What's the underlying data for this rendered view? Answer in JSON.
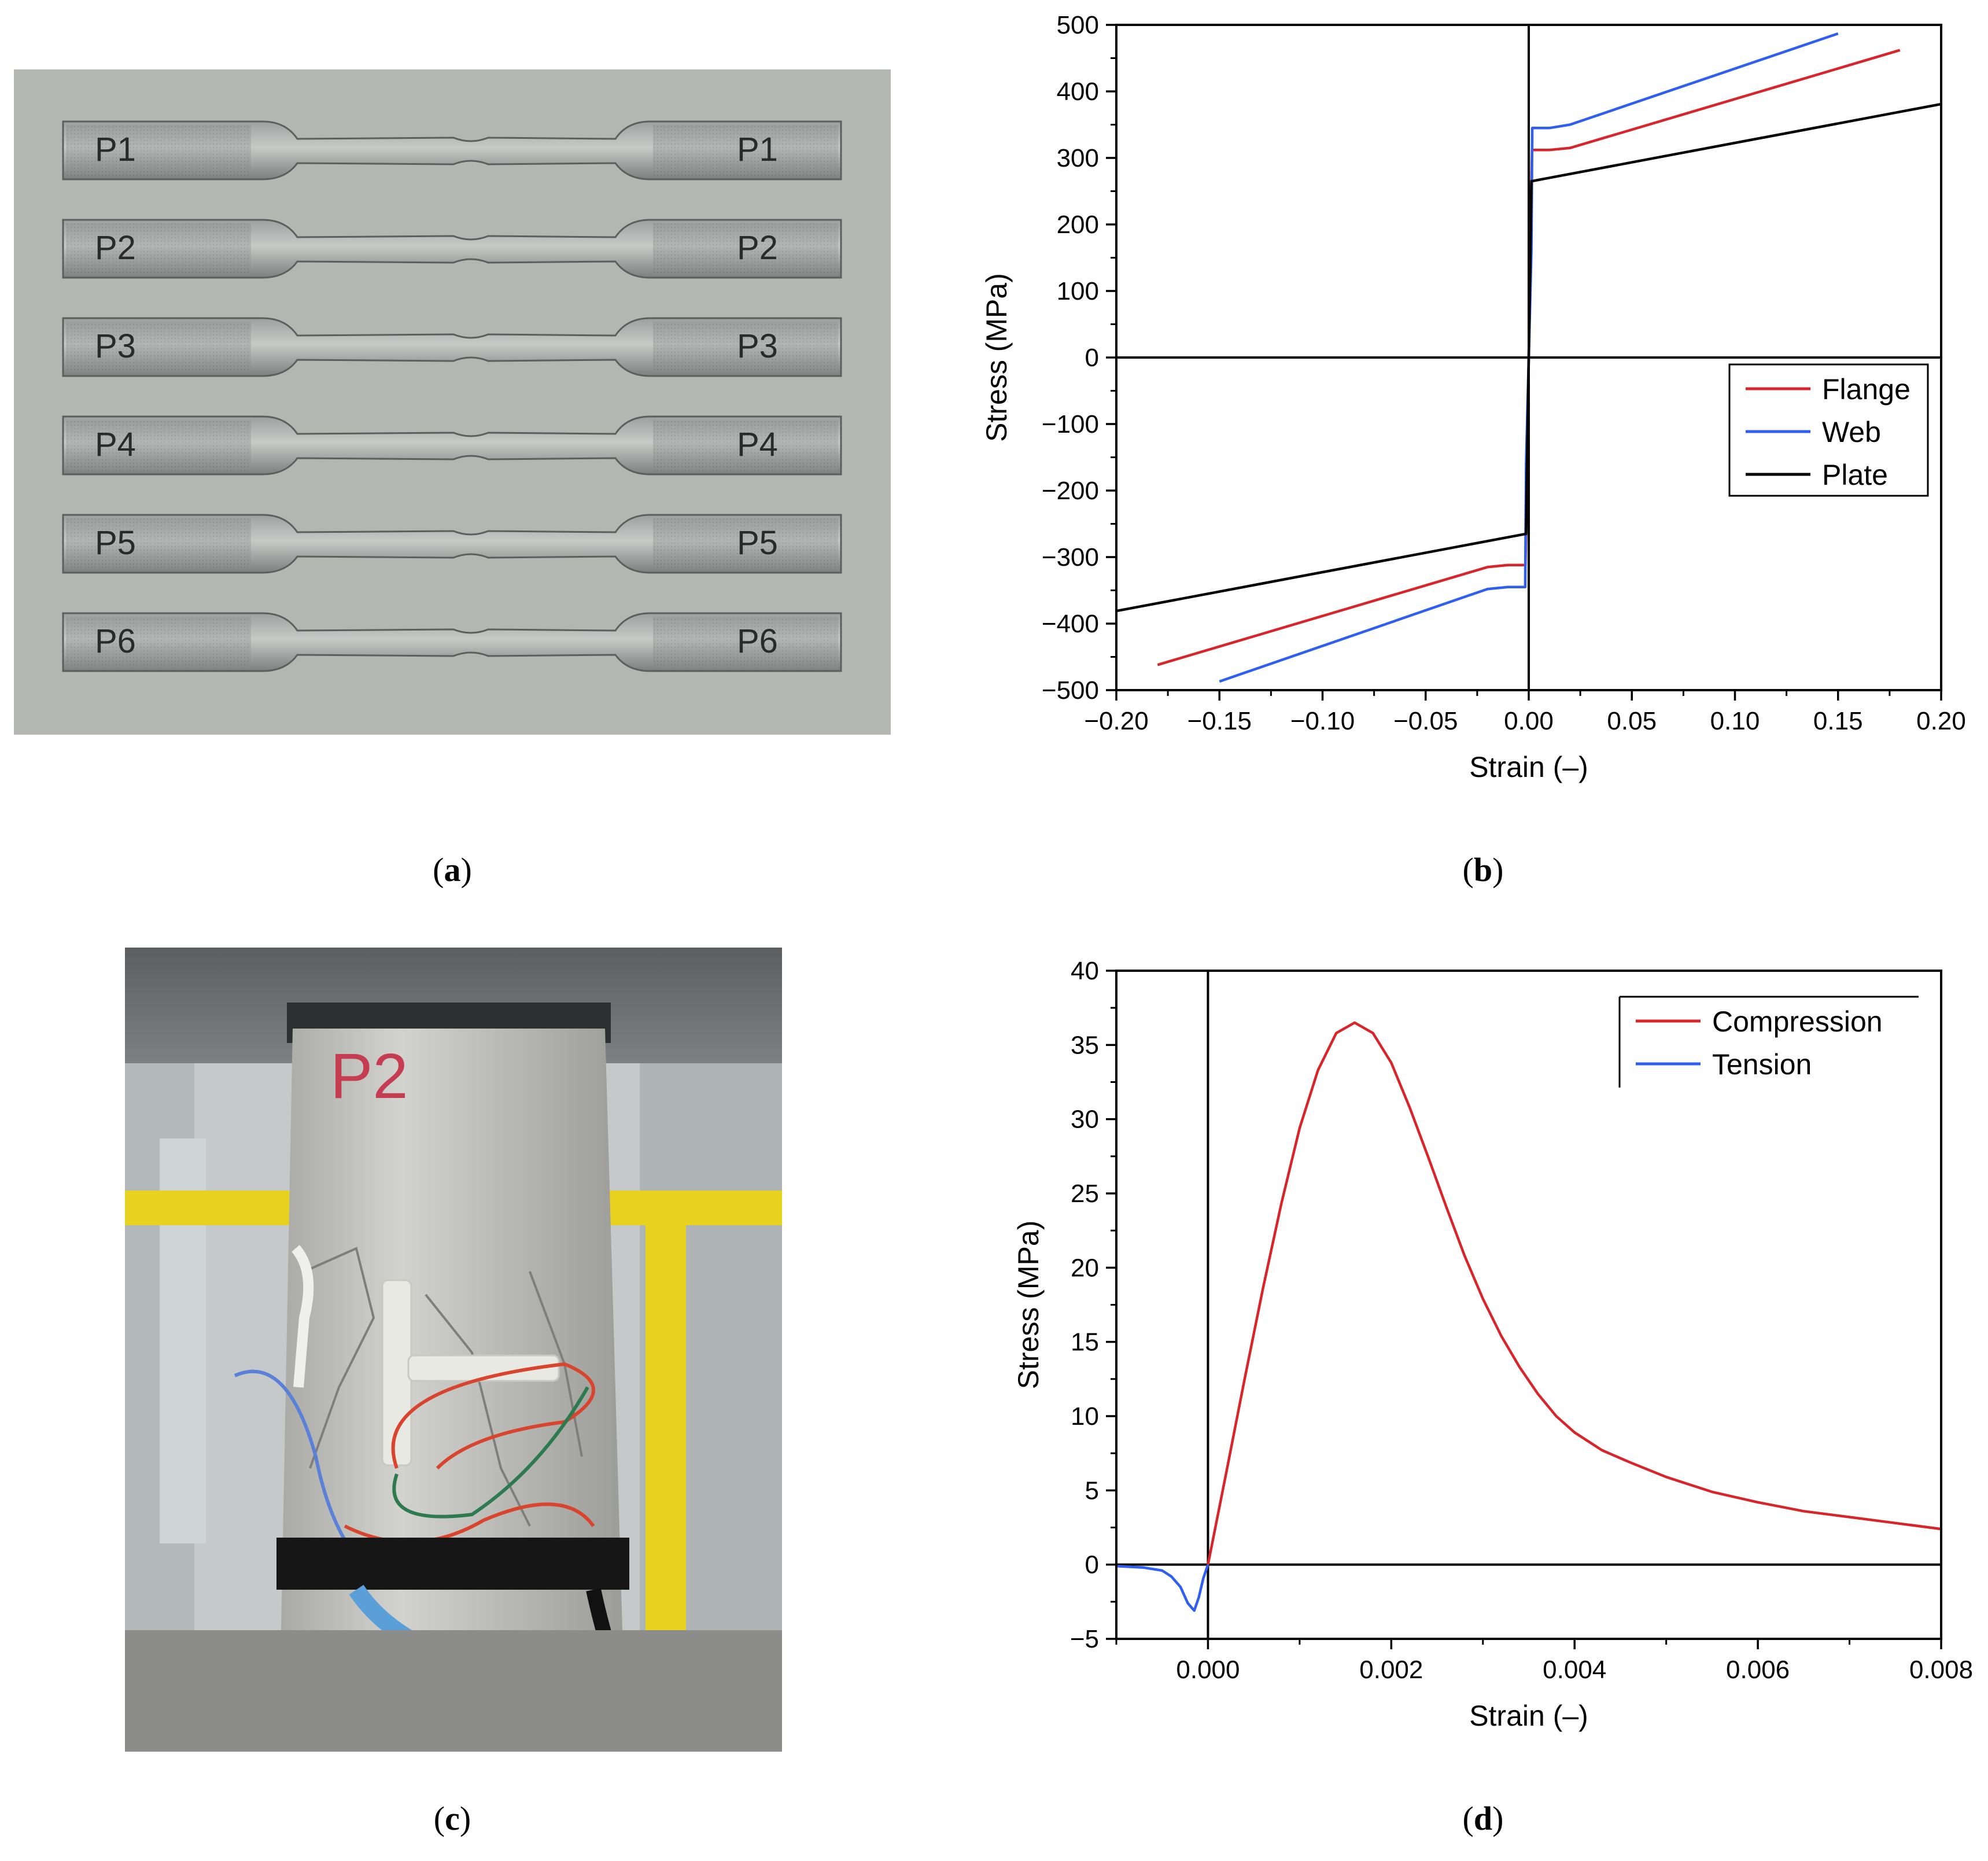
{
  "figure": {
    "panel_labels": {
      "a": {
        "prefix": "(",
        "letter": "a",
        "suffix": ")"
      },
      "b": {
        "prefix": "(",
        "letter": "b",
        "suffix": ")"
      },
      "c": {
        "prefix": "(",
        "letter": "c",
        "suffix": ")"
      },
      "d": {
        "prefix": "(",
        "letter": "d",
        "suffix": ")"
      }
    },
    "photo_a": {
      "specimens": [
        {
          "left_mark": "P1",
          "right_mark": "P1"
        },
        {
          "left_mark": "P2",
          "right_mark": "P2"
        },
        {
          "left_mark": "P3",
          "right_mark": "P3"
        },
        {
          "left_mark": "P4",
          "right_mark": "P4"
        },
        {
          "left_mark": "P5",
          "right_mark": "P5"
        },
        {
          "left_mark": "P6",
          "right_mark": "P6"
        }
      ]
    },
    "photo_c": {
      "specimen_mark": "P2",
      "colors": {
        "concrete": "#c9c9c4",
        "press": "#6d6f70",
        "rail": "#e8d21f",
        "tape": "#161616",
        "cable_blue": "#5a9fd8"
      }
    }
  },
  "chart_data": [
    {
      "id": "b",
      "type": "line",
      "xlabel": "Strain (–)",
      "ylabel": "Stress (MPa)",
      "xlim": [
        -0.2,
        0.2
      ],
      "ylim": [
        -500,
        500
      ],
      "xticks": [
        -0.2,
        -0.15,
        -0.1,
        -0.05,
        0.0,
        0.05,
        0.1,
        0.15,
        0.2
      ],
      "xtick_labels": [
        "−0.20",
        "−0.15",
        "−0.10",
        "−0.05",
        "0.00",
        "0.05",
        "0.10",
        "0.15",
        "0.20"
      ],
      "yticks": [
        -500,
        -400,
        -300,
        -200,
        -100,
        0,
        100,
        200,
        300,
        400,
        500
      ],
      "ytick_labels": [
        "−500",
        "−400",
        "−300",
        "−200",
        "−100",
        "0",
        "100",
        "200",
        "300",
        "400",
        "500"
      ],
      "grid": false,
      "legend_position": "right",
      "series": [
        {
          "name": "Flange",
          "color": "#d9252a",
          "x": [
            -0.18,
            -0.02,
            -0.01,
            -0.0016,
            -0.0012,
            0,
            0.0012,
            0.0016,
            0.01,
            0.02,
            0.18
          ],
          "y": [
            -462,
            -315,
            -312,
            -312,
            -250,
            0,
            250,
            312,
            312,
            315,
            462
          ]
        },
        {
          "name": "Web",
          "color": "#2f5ff2",
          "x": [
            -0.15,
            -0.02,
            -0.01,
            -0.0017,
            -0.0013,
            0,
            0.0013,
            0.0017,
            0.01,
            0.02,
            0.15
          ],
          "y": [
            -487,
            -348,
            -345,
            -345,
            -160,
            0,
            160,
            345,
            345,
            350,
            487
          ]
        },
        {
          "name": "Plate",
          "color": "#000000",
          "x": [
            -0.2,
            -0.0013,
            -0.001,
            0,
            0.001,
            0.0013,
            0.2
          ],
          "y": [
            -381,
            -265,
            -200,
            0,
            200,
            265,
            381
          ]
        }
      ]
    },
    {
      "id": "d",
      "type": "line",
      "xlabel": "Strain (–)",
      "ylabel": "Stress (MPa)",
      "xlim": [
        -0.001,
        0.008
      ],
      "ylim": [
        -5,
        40
      ],
      "xticks": [
        0.0,
        0.002,
        0.004,
        0.006,
        0.008
      ],
      "xtick_labels": [
        "0.000",
        "0.002",
        "0.004",
        "0.006",
        "0.008"
      ],
      "yticks": [
        -5,
        0,
        5,
        10,
        15,
        20,
        25,
        30,
        35,
        40
      ],
      "ytick_labels": [
        "−5",
        "0",
        "5",
        "10",
        "15",
        "20",
        "25",
        "30",
        "35",
        "40"
      ],
      "grid": false,
      "legend_position": "top-right",
      "series": [
        {
          "name": "Compression",
          "color": "#d9252a",
          "x": [
            0,
            0.0002,
            0.0004,
            0.0006,
            0.0008,
            0.001,
            0.0012,
            0.0014,
            0.0016,
            0.0018,
            0.002,
            0.0022,
            0.0024,
            0.0026,
            0.0028,
            0.003,
            0.0032,
            0.0034,
            0.0036,
            0.0038,
            0.004,
            0.0043,
            0.0046,
            0.005,
            0.0055,
            0.006,
            0.0065,
            0.007,
            0.0075,
            0.008
          ],
          "y": [
            0,
            6.2,
            12.5,
            18.6,
            24.3,
            29.4,
            33.3,
            35.8,
            36.5,
            35.8,
            33.8,
            30.8,
            27.5,
            24.1,
            20.8,
            17.9,
            15.4,
            13.3,
            11.5,
            10.0,
            8.9,
            7.7,
            6.9,
            5.9,
            4.9,
            4.2,
            3.6,
            3.2,
            2.8,
            2.4
          ]
        },
        {
          "name": "Tension",
          "color": "#2f5ff2",
          "x": [
            -0.001,
            -0.0007,
            -0.0005,
            -0.0004,
            -0.0003,
            -0.00022,
            -0.00015,
            -0.0001,
            -5e-05,
            0
          ],
          "y": [
            -0.1,
            -0.2,
            -0.4,
            -0.8,
            -1.5,
            -2.6,
            -3.1,
            -2.2,
            -0.9,
            0
          ]
        }
      ]
    }
  ]
}
